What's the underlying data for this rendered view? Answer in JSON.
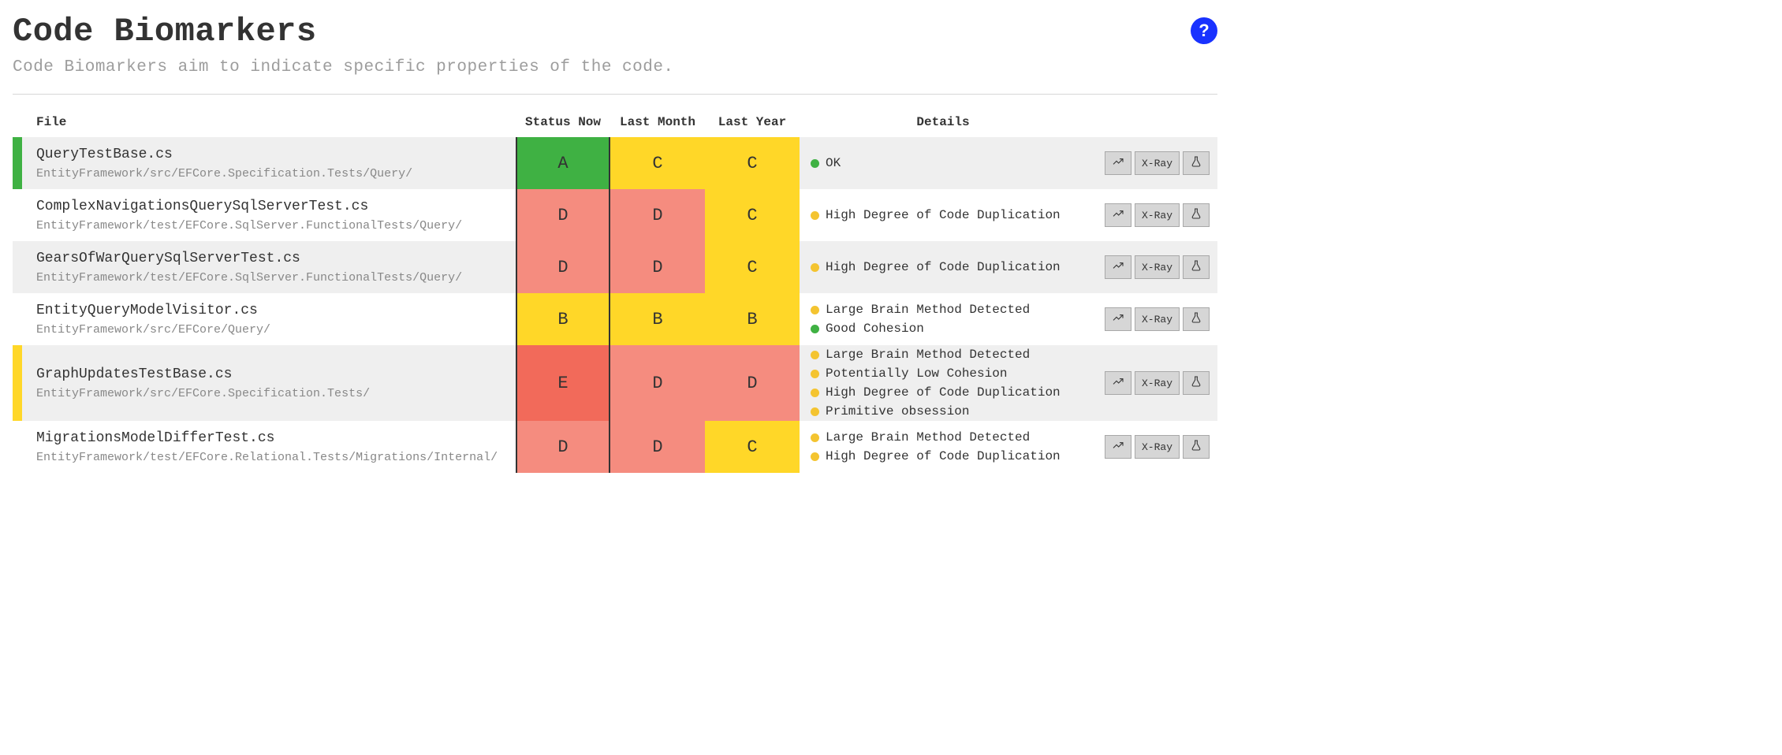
{
  "header": {
    "title": "Code Biomarkers",
    "subtitle": "Code Biomarkers aim to indicate specific properties of the code."
  },
  "columns": {
    "file": "File",
    "status_now": "Status Now",
    "last_month": "Last Month",
    "last_year": "Last Year",
    "details": "Details"
  },
  "grade_colors": {
    "A": "#3fb143",
    "B": "#ffd728",
    "C": "#ffd728",
    "D": "#f58c7f",
    "E": "#f26a5a"
  },
  "detail_colors": {
    "ok": "#3fb143",
    "good": "#3fb143",
    "warn": "#f4c430"
  },
  "stripe_colors": {
    "green": "#3fb143",
    "yellow": "#ffd728",
    "none": ""
  },
  "action_labels": {
    "xray": "X-Ray"
  },
  "rows": [
    {
      "stripe": "green",
      "file_name": "QueryTestBase.cs",
      "file_path": "EntityFramework/src/EFCore.Specification.Tests/Query/",
      "status_now": "A",
      "last_month": "C",
      "last_year": "C",
      "details": [
        {
          "dot": "ok",
          "text": "OK"
        }
      ]
    },
    {
      "stripe": "none",
      "file_name": "ComplexNavigationsQuerySqlServerTest.cs",
      "file_path": "EntityFramework/test/EFCore.SqlServer.FunctionalTests/Query/",
      "status_now": "D",
      "last_month": "D",
      "last_year": "C",
      "details": [
        {
          "dot": "warn",
          "text": "High Degree of Code Duplication"
        }
      ]
    },
    {
      "stripe": "none",
      "file_name": "GearsOfWarQuerySqlServerTest.cs",
      "file_path": "EntityFramework/test/EFCore.SqlServer.FunctionalTests/Query/",
      "status_now": "D",
      "last_month": "D",
      "last_year": "C",
      "details": [
        {
          "dot": "warn",
          "text": "High Degree of Code Duplication"
        }
      ]
    },
    {
      "stripe": "none",
      "file_name": "EntityQueryModelVisitor.cs",
      "file_path": "EntityFramework/src/EFCore/Query/",
      "status_now": "B",
      "last_month": "B",
      "last_year": "B",
      "details": [
        {
          "dot": "warn",
          "text": "Large Brain Method Detected"
        },
        {
          "dot": "good",
          "text": "Good Cohesion"
        }
      ]
    },
    {
      "stripe": "yellow",
      "file_name": "GraphUpdatesTestBase.cs",
      "file_path": "EntityFramework/src/EFCore.Specification.Tests/",
      "status_now": "E",
      "last_month": "D",
      "last_year": "D",
      "details": [
        {
          "dot": "warn",
          "text": "Large Brain Method Detected"
        },
        {
          "dot": "warn",
          "text": "Potentially Low Cohesion"
        },
        {
          "dot": "warn",
          "text": "High Degree of Code Duplication"
        },
        {
          "dot": "warn",
          "text": "Primitive obsession"
        }
      ]
    },
    {
      "stripe": "none",
      "file_name": "MigrationsModelDifferTest.cs",
      "file_path": "EntityFramework/test/EFCore.Relational.Tests/Migrations/Internal/",
      "status_now": "D",
      "last_month": "D",
      "last_year": "C",
      "details": [
        {
          "dot": "warn",
          "text": "Large Brain Method Detected"
        },
        {
          "dot": "warn",
          "text": "High Degree of Code Duplication"
        }
      ]
    }
  ]
}
